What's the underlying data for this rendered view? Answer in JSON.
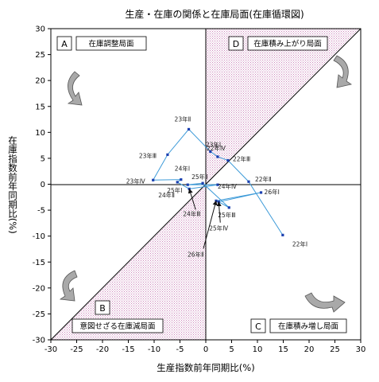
{
  "chart_data": {
    "type": "scatter",
    "title": "生産・在庫の関係と在庫局面(在庫循環図)",
    "xlabel": "生産指数前年同期比(%)",
    "ylabel": "在庫指数前年同期比(%)",
    "xlim": [
      -30,
      30
    ],
    "ylim": [
      -30,
      30
    ],
    "xticks": [
      -30,
      -25,
      -20,
      -15,
      -10,
      -5,
      0,
      5,
      10,
      15,
      20,
      25,
      30
    ],
    "yticks": [
      -30,
      -25,
      -20,
      -15,
      -10,
      -5,
      0,
      5,
      10,
      15,
      20,
      25,
      30
    ],
    "grid": false,
    "legend": "none",
    "colors": {
      "series": "#3c9ad8",
      "marker": "#1a3fb0",
      "shade": "#cc88bb"
    },
    "series": [
      {
        "points": [
          {
            "label": "22年Ⅰ",
            "x": 14.9,
            "y": -9.8
          },
          {
            "label": "22年Ⅱ",
            "x": 8.3,
            "y": 0.5
          },
          {
            "label": "22年Ⅲ",
            "x": 4.3,
            "y": 4.6
          },
          {
            "label": "22年Ⅳ",
            "x": 2.3,
            "y": 5.3
          },
          {
            "label": "23年Ⅰ",
            "x": 0.9,
            "y": 6.3
          },
          {
            "label": "23年Ⅱ",
            "x": -3.3,
            "y": 10.6
          },
          {
            "label": "23年Ⅲ",
            "x": -7.4,
            "y": 5.7
          },
          {
            "label": "23年Ⅳ",
            "x": -10.2,
            "y": 0.8
          },
          {
            "label": "24年Ⅰ",
            "x": -4.8,
            "y": 0.9
          },
          {
            "label": "24年Ⅱ",
            "x": -5.5,
            "y": 0.4
          },
          {
            "label": "24年Ⅲ",
            "x": -3.2,
            "y": -0.9
          },
          {
            "label": "24年Ⅳ",
            "x": 2.3,
            "y": -0.1
          },
          {
            "label": "25年Ⅰ",
            "x": -3.5,
            "y": -0.1
          },
          {
            "label": "25年Ⅱ",
            "x": -0.6,
            "y": 0.2
          },
          {
            "label": "25年Ⅲ",
            "x": 4.5,
            "y": -4.5
          },
          {
            "label": "25年Ⅳ",
            "x": 2.5,
            "y": -3.4
          },
          {
            "label": "26年Ⅰ",
            "x": 10.7,
            "y": -1.6
          },
          {
            "label": "26年Ⅱ",
            "x": 2.0,
            "y": -3.2
          }
        ]
      }
    ],
    "quadrants": [
      {
        "letter": "A",
        "text": "在庫調整局面"
      },
      {
        "letter": "D",
        "text": "在庫積み上がり局面"
      },
      {
        "letter": "B",
        "text": "意図せざる在庫減局面"
      },
      {
        "letter": "C",
        "text": "在庫積み増し局面"
      }
    ]
  }
}
